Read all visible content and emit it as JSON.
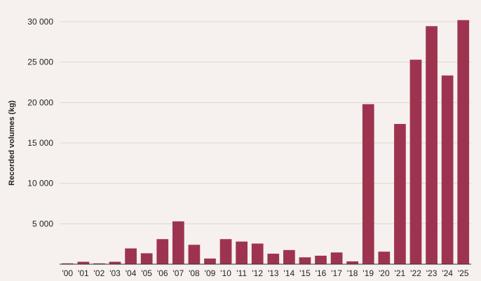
{
  "colors": {
    "bar": "#9e3350",
    "background": "#f6f1ee",
    "grid": "#ddd5d1"
  },
  "chart_data": {
    "type": "bar",
    "title": "",
    "xlabel": "",
    "ylabel": "Recorded volumes (kg)",
    "ylim": [
      0,
      30000
    ],
    "yticks": [
      5000,
      10000,
      15000,
      20000,
      25000,
      30000
    ],
    "ytick_labels": [
      "5 000",
      "10 000",
      "15 000",
      "20 000",
      "25 000",
      "30 000"
    ],
    "grid": true,
    "legend": "none",
    "categories": [
      "'00",
      "'01",
      "'02",
      "'03",
      "'04",
      "'05",
      "'06",
      "'07",
      "'08",
      "'09",
      "'10",
      "'11",
      "'12",
      "'13",
      "'14",
      "'15",
      "'16",
      "'17",
      "'18",
      "'19",
      "'20",
      "'21",
      "'22",
      "'23",
      "'24",
      "'25"
    ],
    "values": [
      100,
      300,
      100,
      300,
      1950,
      1350,
      3100,
      5300,
      2400,
      700,
      3100,
      2800,
      2550,
      1300,
      1750,
      850,
      1050,
      1450,
      350,
      19800,
      1550,
      17350,
      25300,
      29450,
      23350,
      30200
    ]
  }
}
